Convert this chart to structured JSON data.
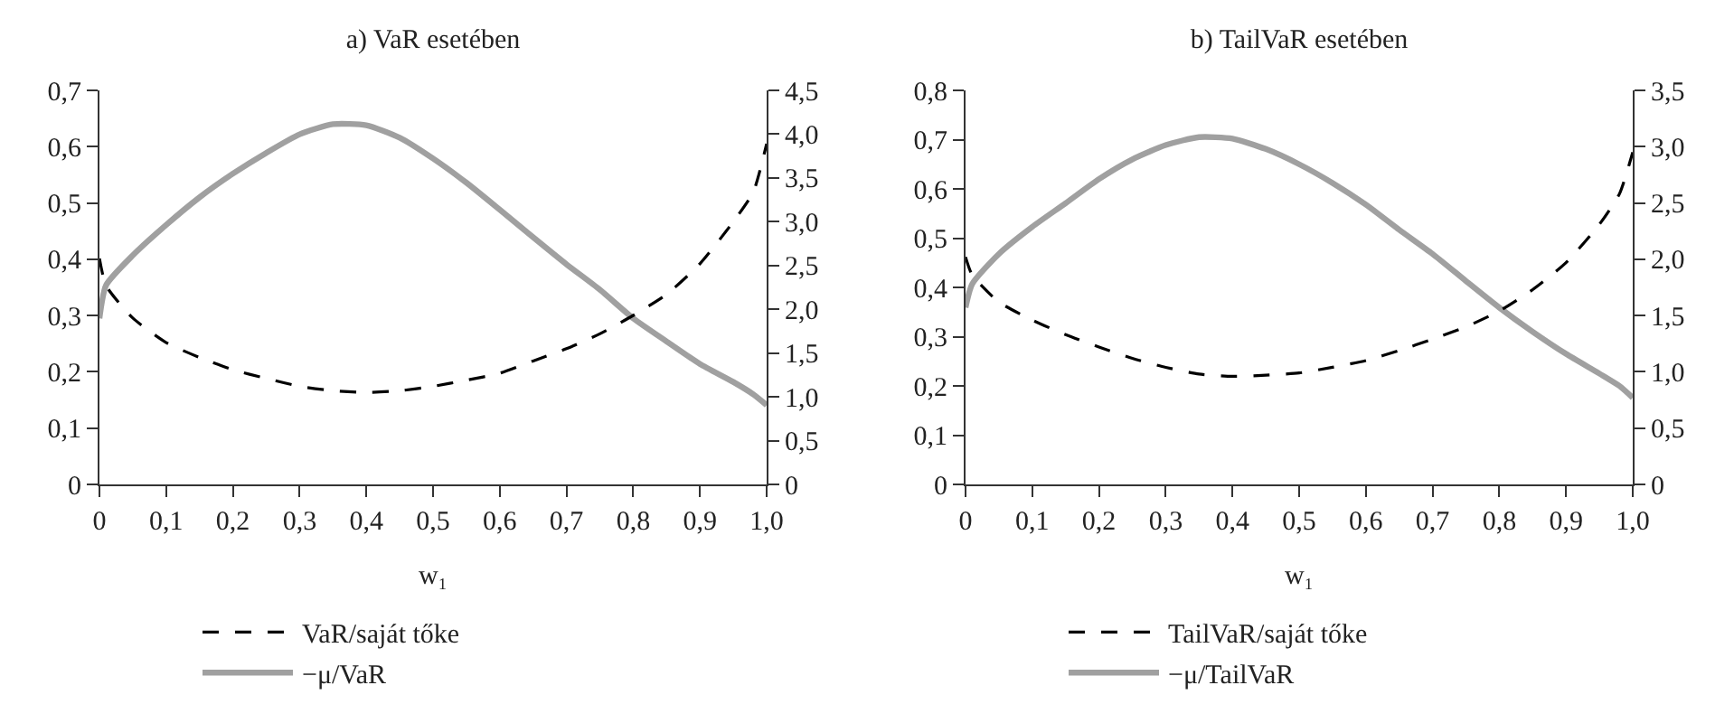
{
  "chart_data": [
    {
      "type": "line",
      "title": "a) VaR esetében",
      "xlabel": "w₁",
      "x": [
        0,
        0.01,
        0.05,
        0.1,
        0.15,
        0.2,
        0.25,
        0.3,
        0.35,
        0.4,
        0.45,
        0.5,
        0.55,
        0.6,
        0.65,
        0.7,
        0.75,
        0.8,
        0.85,
        0.9,
        0.95,
        0.98,
        1.0
      ],
      "series": [
        {
          "name": "VaR/saját tőke",
          "color": "#000000",
          "axis": "y2",
          "line_style": "dashed",
          "values": [
            2.58,
            2.27,
            1.9,
            1.62,
            1.45,
            1.31,
            1.21,
            1.12,
            1.07,
            1.05,
            1.07,
            1.12,
            1.19,
            1.27,
            1.41,
            1.55,
            1.72,
            1.93,
            2.17,
            2.52,
            3.0,
            3.34,
            3.89
          ]
        },
        {
          "name": "−μ/VaR",
          "color": "#a0a0a0",
          "line_style": "solid",
          "values": [
            0.295,
            0.354,
            0.407,
            0.461,
            0.51,
            0.552,
            0.589,
            0.622,
            0.64,
            0.638,
            0.616,
            0.579,
            0.536,
            0.488,
            0.439,
            0.391,
            0.346,
            0.295,
            0.254,
            0.214,
            0.182,
            0.16,
            0.141
          ]
        }
      ],
      "xlim": [
        0,
        1
      ],
      "xticks": [
        0,
        {
          "value": 0.1,
          "label": "0,1"
        },
        {
          "value": 0.2,
          "label": "0,2"
        },
        {
          "value": 0.3,
          "label": "0,3"
        },
        {
          "value": 0.4,
          "label": "0,4"
        },
        {
          "value": 0.5,
          "label": "0,5"
        },
        {
          "value": 0.6,
          "label": "0,6"
        },
        {
          "value": 0.7,
          "label": "0,7"
        },
        {
          "value": 0.8,
          "label": "0,8"
        },
        {
          "value": 0.9,
          "label": "0,9"
        },
        {
          "value": 1,
          "label": "1,0"
        }
      ],
      "ylim": [
        0,
        0.7
      ],
      "yticks": [
        0,
        {
          "value": 0.1,
          "label": "0,1"
        },
        {
          "value": 0.2,
          "label": "0,2"
        },
        {
          "value": 0.3,
          "label": "0,3"
        },
        {
          "value": 0.4,
          "label": "0,4"
        },
        {
          "value": 0.5,
          "label": "0,5"
        },
        {
          "value": 0.6,
          "label": "0,6"
        },
        {
          "value": 0.7,
          "label": "0,7"
        }
      ],
      "y2lim": [
        0,
        4.5
      ],
      "y2ticks": [
        0,
        {
          "value": 0.5,
          "label": "0,5"
        },
        {
          "value": 1,
          "label": "1,0"
        },
        {
          "value": 1.5,
          "label": "1,5"
        },
        {
          "value": 2,
          "label": "2,0"
        },
        {
          "value": 2.5,
          "label": "2,5"
        },
        {
          "value": 3,
          "label": "3,0"
        },
        {
          "value": 3.5,
          "label": "3,5"
        },
        {
          "value": 4,
          "label": "4,0"
        },
        {
          "value": 4.5,
          "label": "4,5"
        }
      ],
      "grid": false,
      "legend": "bottom",
      "marker": "none"
    },
    {
      "type": "line",
      "title": "b) TailVaR esetében",
      "xlabel": "w₁",
      "x": [
        0,
        0.01,
        0.05,
        0.1,
        0.15,
        0.2,
        0.25,
        0.3,
        0.35,
        0.4,
        0.45,
        0.5,
        0.55,
        0.6,
        0.65,
        0.7,
        0.75,
        0.8,
        0.85,
        0.9,
        0.95,
        0.98,
        1.0
      ],
      "series": [
        {
          "name": "TailVaR/saját tőke",
          "color": "#000000",
          "axis": "y2",
          "line_style": "dashed",
          "values": [
            2.02,
            1.86,
            1.62,
            1.46,
            1.33,
            1.22,
            1.12,
            1.04,
            0.98,
            0.96,
            0.97,
            0.99,
            1.04,
            1.1,
            1.19,
            1.29,
            1.4,
            1.54,
            1.73,
            1.97,
            2.31,
            2.58,
            2.95
          ]
        },
        {
          "name": "−μ/TailVaR",
          "color": "#a0a0a0",
          "line_style": "solid",
          "values": [
            0.359,
            0.407,
            0.468,
            0.523,
            0.571,
            0.62,
            0.66,
            0.689,
            0.705,
            0.702,
            0.681,
            0.65,
            0.612,
            0.568,
            0.517,
            0.468,
            0.413,
            0.359,
            0.31,
            0.265,
            0.225,
            0.2,
            0.176
          ]
        }
      ],
      "xlim": [
        0,
        1
      ],
      "xticks": [
        0,
        {
          "value": 0.1,
          "label": "0,1"
        },
        {
          "value": 0.2,
          "label": "0,2"
        },
        {
          "value": 0.3,
          "label": "0,3"
        },
        {
          "value": 0.4,
          "label": "0,4"
        },
        {
          "value": 0.5,
          "label": "0,5"
        },
        {
          "value": 0.6,
          "label": "0,6"
        },
        {
          "value": 0.7,
          "label": "0,7"
        },
        {
          "value": 0.8,
          "label": "0,8"
        },
        {
          "value": 0.9,
          "label": "0,9"
        },
        {
          "value": 1,
          "label": "1,0"
        }
      ],
      "ylim": [
        0,
        0.8
      ],
      "yticks": [
        0,
        {
          "value": 0.1,
          "label": "0,1"
        },
        {
          "value": 0.2,
          "label": "0,2"
        },
        {
          "value": 0.3,
          "label": "0,3"
        },
        {
          "value": 0.4,
          "label": "0,4"
        },
        {
          "value": 0.5,
          "label": "0,5"
        },
        {
          "value": 0.6,
          "label": "0,6"
        },
        {
          "value": 0.7,
          "label": "0,7"
        },
        {
          "value": 0.8,
          "label": "0,8"
        }
      ],
      "y2lim": [
        0,
        3.5
      ],
      "y2ticks": [
        0,
        {
          "value": 0.5,
          "label": "0,5"
        },
        {
          "value": 1,
          "label": "1,0"
        },
        {
          "value": 1.5,
          "label": "1,5"
        },
        {
          "value": 2,
          "label": "2,0"
        },
        {
          "value": 2.5,
          "label": "2,5"
        },
        {
          "value": 3,
          "label": "3,0"
        },
        {
          "value": 3.5,
          "label": "3,5"
        }
      ],
      "grid": false,
      "legend": "bottom",
      "marker": "none"
    }
  ]
}
